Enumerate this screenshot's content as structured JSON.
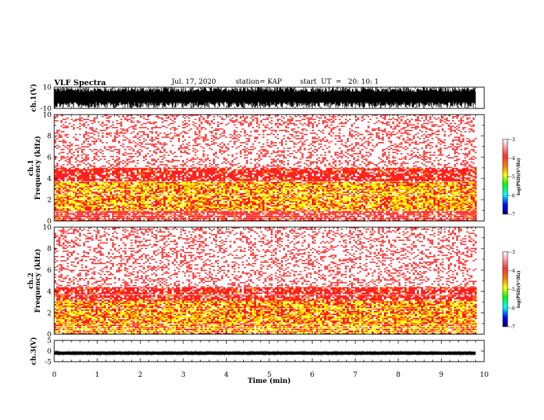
{
  "header": {
    "title": "VLF Spectra",
    "date": "Jul. 17, 2020",
    "station": "station= KAP",
    "start": "start  UT  =   20: 10: 1"
  },
  "chart_data": [
    {
      "type": "line",
      "panel": "ch1-waveform",
      "ylabel": "ch.1(V)",
      "ylim": [
        -10,
        10
      ],
      "ytick_labels": [
        "10",
        "-10"
      ],
      "xlim": [
        0,
        10
      ],
      "visible_extent_min": [
        0,
        9.8
      ],
      "description": "dense black waveform filling most of the range"
    },
    {
      "type": "heatmap",
      "panel": "ch1-spectrogram",
      "ylabel": "ch.1\nFrequency (kHz)",
      "ylim": [
        0,
        10
      ],
      "ytick_labels": [
        "0",
        "2",
        "4",
        "6",
        "8",
        "10"
      ],
      "xlim": [
        0,
        10
      ],
      "visible_extent_min": [
        0,
        9.8
      ],
      "colorbar": {
        "label": "log(PSD)(V²/Hz)",
        "range": [
          -7,
          -3
        ],
        "tick_labels": [
          "-3",
          "-4",
          "-5",
          "-6",
          "-7"
        ]
      },
      "bands": [
        {
          "from_khz": 0,
          "to_khz": 1.0,
          "level": "red"
        },
        {
          "from_khz": 1.0,
          "to_khz": 3.8,
          "level": "yellow-red"
        },
        {
          "from_khz": 3.8,
          "to_khz": 5.0,
          "level": "red"
        },
        {
          "from_khz": 5.0,
          "to_khz": 10,
          "level": "speckled-red"
        }
      ]
    },
    {
      "type": "heatmap",
      "panel": "ch2-spectrogram",
      "ylabel": "ch.2\nFrequency (kHz)",
      "ylim": [
        0,
        10
      ],
      "ytick_labels": [
        "0",
        "2",
        "4",
        "6",
        "8",
        "10"
      ],
      "xlim": [
        0,
        10
      ],
      "visible_extent_min": [
        0,
        9.8
      ],
      "colorbar": {
        "label": "log(PSD)(V²/Hz)",
        "range": [
          -7,
          -3
        ],
        "tick_labels": [
          "-3",
          "-4",
          "-5",
          "-6",
          "-7"
        ]
      },
      "bands": [
        {
          "from_khz": 0,
          "to_khz": 3.2,
          "level": "yellow-red"
        },
        {
          "from_khz": 3.2,
          "to_khz": 4.4,
          "level": "red"
        },
        {
          "from_khz": 4.4,
          "to_khz": 10,
          "level": "speckled-red"
        }
      ]
    },
    {
      "type": "line",
      "panel": "ch3-waveform",
      "ylabel": "ch.3(V)",
      "ylim": [
        -5,
        5
      ],
      "ytick_labels": [
        "5",
        "0",
        "-5"
      ],
      "xlim": [
        0,
        10
      ],
      "visible_extent_min": [
        0,
        9.8
      ],
      "description": "narrow black band near -1 V"
    }
  ],
  "xaxis": {
    "label": "Time (min)",
    "tick_labels": [
      "0",
      "1",
      "2",
      "3",
      "4",
      "5",
      "6",
      "7",
      "8",
      "9",
      "10"
    ]
  },
  "colors": {
    "colormap": [
      "#ffffff",
      "#ff0000",
      "#ff8000",
      "#ffff00",
      "#00ff00",
      "#00ffff",
      "#0000ff",
      "#000080"
    ],
    "trace": "#000000"
  }
}
